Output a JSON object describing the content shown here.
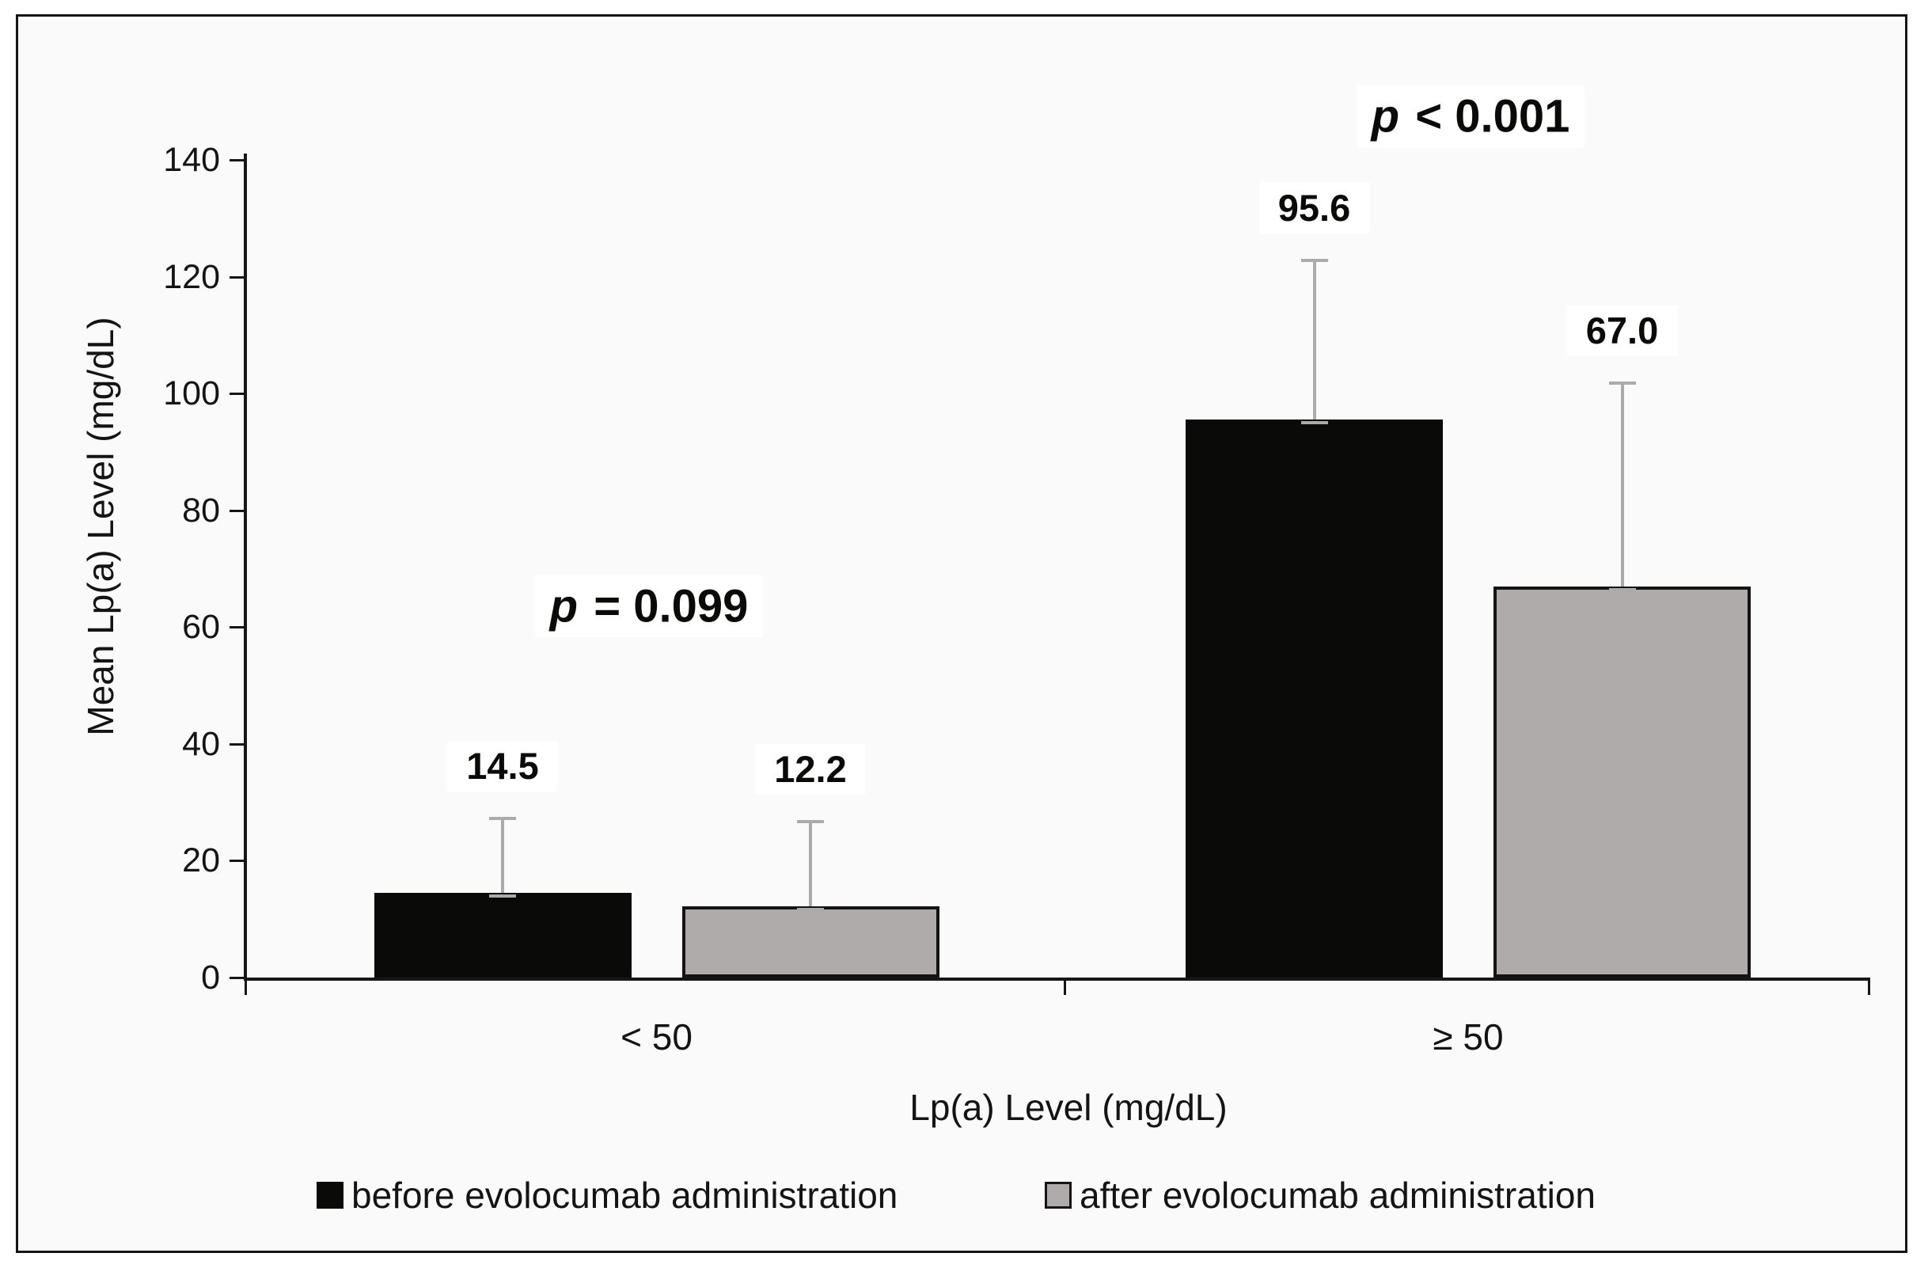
{
  "chart_data": {
    "type": "bar",
    "title": "",
    "categories": [
      "< 50",
      "≥ 50"
    ],
    "xlabel": "Lp(a) Level (mg/dL)",
    "ylabel": "Mean Lp(a) Level (mg/dL)",
    "ylim": [
      0,
      140
    ],
    "yticks": [
      0,
      20,
      40,
      60,
      80,
      100,
      120,
      140
    ],
    "grid": false,
    "legend_position": "bottom",
    "series": [
      {
        "name": "before evolocumab administration",
        "color": "#0a0a09",
        "border": false,
        "values": [
          14.5,
          95.6
        ],
        "value_labels": [
          "14.5",
          "95.6"
        ],
        "error_top": [
          27.5,
          123.0
        ]
      },
      {
        "name": "after evolocumab administration",
        "color": "#aeabaa",
        "border": true,
        "values": [
          12.2,
          67.0
        ],
        "value_labels": [
          "12.2",
          "67.0"
        ],
        "error_top": [
          27.0,
          102.0
        ]
      }
    ],
    "annotations": [
      {
        "group": "< 50",
        "p_symbol": "p",
        "text": " = 0.099"
      },
      {
        "group": "≥ 50",
        "p_symbol": "p",
        "text": " < 0.001"
      }
    ],
    "error_bar_color": "#ababab",
    "axis_color": "#161616"
  }
}
